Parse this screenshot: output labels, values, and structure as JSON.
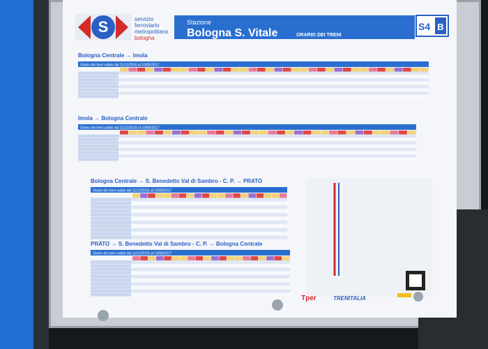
{
  "header": {
    "brand": [
      "servizio",
      "ferroviario",
      "metropolitano",
      "bologna"
    ],
    "station_label": "Stazione",
    "station": "Bologna S. Vitale",
    "subtitle": "ORARIO DEI TRENI",
    "line": "S4",
    "branch": "B"
  },
  "sections": [
    {
      "title": "Bologna Centrale → Imola",
      "validity": "Orario dei treni valido dal 11/12/2016 al 10/06/2017"
    },
    {
      "title": "Imola → Bologna Centrale",
      "validity": "Orario dei treni valido dal 11/12/2016 al 10/06/2017"
    },
    {
      "title": "Bologna Centrale → S. Benedetto Val di Sambro - C. P. → PRATO",
      "validity": "Orario dei treni valido dal 11/12/2016 al 10/06/2017"
    },
    {
      "title": "PRATO → S. Benedetto Val di Sambro - C. P. → Bologna Centrale",
      "validity": "Orario dei treni valido dal 11/12/2016 al 10/06/2017"
    }
  ],
  "footer": {
    "operator1": "Tper",
    "operator2": "TRENITALIA"
  }
}
